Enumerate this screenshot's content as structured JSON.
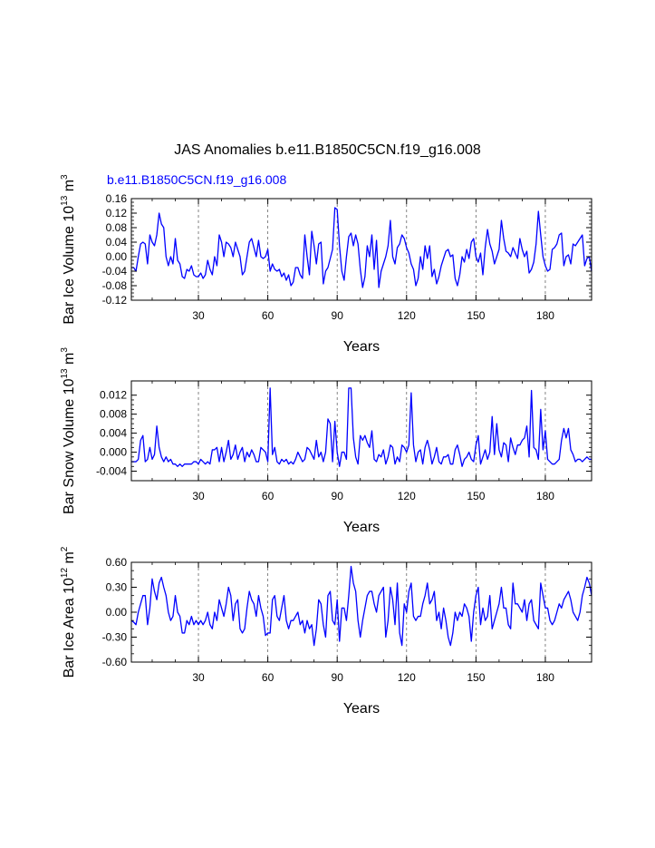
{
  "page_title": "JAS Anomalies b.e11.B1850C5CN.f19_g16.008",
  "case_label": "b.e11.B1850C5CN.f19_g16.008",
  "colors": {
    "series": "#0000ff",
    "axis": "#000000",
    "reference_line": "#666666"
  },
  "chart_data": [
    {
      "type": "line",
      "title": "",
      "ylabel": {
        "main": "Bar Ice Volume 10",
        "exp1": "13",
        "unit": " m",
        "exp2": "3"
      },
      "xlabel": "Years",
      "xlim": [
        1,
        200
      ],
      "ylim": [
        -0.12,
        0.16
      ],
      "xticks": [
        30,
        60,
        90,
        120,
        150,
        180
      ],
      "xtick_labels": [
        "30",
        "60",
        "90",
        "120",
        "150",
        "180"
      ],
      "yticks": [
        -0.12,
        -0.08,
        -0.04,
        0.0,
        0.04,
        0.08,
        0.12,
        0.16
      ],
      "ytick_labels": [
        "-0.12",
        "-0.08",
        "-0.04",
        "0.00",
        "0.04",
        "0.08",
        "0.12",
        "0.16"
      ],
      "minor_per_major_y": 4,
      "minor_step_x": 10,
      "reference_lines_x": [
        30,
        60,
        90,
        120,
        150,
        180
      ],
      "series": [
        {
          "name": "b.e11.B1850C5CN.f19_g16.008",
          "values": [
            -0.03,
            -0.03,
            -0.04,
            0.0,
            0.035,
            0.04,
            0.035,
            -0.02,
            0.06,
            0.04,
            0.03,
            0.06,
            0.12,
            0.09,
            0.08,
            0.0,
            -0.025,
            0.0,
            -0.02,
            0.05,
            -0.01,
            -0.02,
            -0.055,
            -0.06,
            -0.035,
            -0.04,
            -0.025,
            -0.05,
            -0.055,
            -0.055,
            -0.045,
            -0.06,
            -0.05,
            -0.01,
            -0.035,
            -0.05,
            0.0,
            -0.025,
            0.06,
            0.04,
            0.0,
            0.04,
            0.035,
            0.025,
            0.0,
            0.04,
            0.02,
            0.0,
            -0.05,
            -0.04,
            0.0,
            0.04,
            0.05,
            0.025,
            0.0,
            0.045,
            0.0,
            -0.005,
            0.0,
            0.02,
            -0.04,
            -0.02,
            -0.035,
            -0.04,
            -0.035,
            -0.055,
            -0.045,
            -0.065,
            -0.05,
            -0.08,
            -0.07,
            -0.03,
            -0.03,
            -0.05,
            -0.06,
            0.06,
            0.0,
            -0.05,
            0.07,
            0.03,
            -0.02,
            0.035,
            0.04,
            -0.075,
            -0.04,
            -0.03,
            -0.005,
            0.02,
            0.135,
            0.13,
            0.03,
            -0.04,
            -0.065,
            0.0,
            0.055,
            0.065,
            0.03,
            0.06,
            0.035,
            -0.035,
            -0.085,
            -0.055,
            0.03,
            0.0,
            0.06,
            -0.035,
            0.045,
            -0.085,
            -0.04,
            -0.02,
            0.0,
            0.03,
            0.1,
            0.0,
            -0.02,
            0.025,
            0.035,
            0.06,
            0.05,
            0.025,
            0.01,
            -0.02,
            -0.035,
            -0.08,
            -0.06,
            0.0,
            -0.035,
            0.03,
            -0.005,
            0.03,
            -0.055,
            -0.035,
            -0.075,
            -0.055,
            -0.025,
            -0.005,
            0.015,
            0.02,
            0.0,
            0.005,
            -0.06,
            -0.08,
            -0.05,
            0.0,
            -0.015,
            0.02,
            -0.005,
            0.04,
            0.05,
            0.0,
            -0.015,
            0.01,
            -0.05,
            0.025,
            0.075,
            0.035,
            0.015,
            -0.02,
            0.0,
            0.02,
            0.1,
            0.05,
            0.015,
            0.01,
            0.0,
            0.025,
            0.01,
            -0.005,
            0.05,
            0.02,
            0.0,
            0.015,
            -0.045,
            -0.035,
            -0.015,
            0.035,
            0.125,
            0.06,
            0.0,
            -0.025,
            -0.04,
            -0.035,
            0.02,
            0.025,
            0.035,
            0.06,
            0.065,
            -0.025,
            0.0,
            0.005,
            -0.02,
            0.035,
            0.03,
            0.04,
            0.05,
            0.06,
            -0.025,
            -0.005,
            0.0,
            -0.04
          ]
        }
      ]
    },
    {
      "type": "line",
      "title": "",
      "ylabel": {
        "main": "Bar Snow Volume 10",
        "exp1": "13",
        "unit": " m",
        "exp2": "3"
      },
      "xlabel": "Years",
      "xlim": [
        1,
        200
      ],
      "ylim": [
        -0.006,
        0.015
      ],
      "xticks": [
        30,
        60,
        90,
        120,
        150,
        180
      ],
      "xtick_labels": [
        "30",
        "60",
        "90",
        "120",
        "150",
        "180"
      ],
      "yticks": [
        -0.004,
        0.0,
        0.004,
        0.008,
        0.012
      ],
      "ytick_labels": [
        "-0.004",
        "0.000",
        "0.004",
        "0.008",
        "0.012"
      ],
      "minor_per_major_y": 4,
      "minor_step_x": 10,
      "reference_lines_x": [
        30,
        60,
        90,
        120,
        150,
        180
      ],
      "series": [
        {
          "name": "b.e11.B1850C5CN.f19_g16.008",
          "values": [
            -0.002,
            -0.002,
            -0.002,
            -0.0015,
            0.0025,
            0.0035,
            -0.002,
            -0.0015,
            0.001,
            -0.0015,
            -0.0005,
            0.0055,
            0.001,
            -0.001,
            -0.002,
            -0.001,
            -0.002,
            -0.0015,
            -0.0025,
            -0.0025,
            -0.003,
            -0.0025,
            -0.003,
            -0.0025,
            -0.0025,
            -0.0025,
            -0.0025,
            -0.002,
            -0.002,
            -0.0025,
            -0.0015,
            -0.002,
            -0.0025,
            -0.002,
            -0.0025,
            0.0005,
            0.0005,
            0.001,
            -0.002,
            0.001,
            -0.002,
            0.0,
            0.0025,
            -0.0015,
            -0.0005,
            0.0015,
            -0.0015,
            0.0,
            0.001,
            -0.002,
            0.0,
            -0.001,
            0.0005,
            -0.0005,
            -0.002,
            -0.002,
            0.001,
            0.0005,
            0.0,
            -0.002,
            0.0135,
            -0.0005,
            0.001,
            -0.002,
            -0.0025,
            -0.0015,
            -0.002,
            -0.0015,
            -0.0025,
            -0.002,
            -0.0025,
            -0.0015,
            0.0,
            -0.001,
            -0.002,
            -0.0015,
            0.001,
            0.0005,
            -0.0005,
            -0.0015,
            0.0025,
            -0.001,
            0.0,
            -0.002,
            0.0,
            0.007,
            0.006,
            -0.002,
            0.0065,
            0.0,
            -0.003,
            0.0,
            0.0,
            -0.0015,
            0.0135,
            0.0135,
            0.003,
            -0.001,
            -0.0025,
            0.0035,
            0.0025,
            0.0035,
            0.002,
            0.001,
            0.0045,
            -0.0015,
            -0.002,
            -0.0005,
            -0.001,
            0.0005,
            -0.0025,
            -0.001,
            0.0015,
            0.001,
            -0.0025,
            -0.001,
            -0.002,
            0.0015,
            0.001,
            0.0,
            0.0015,
            0.0125,
            0.0015,
            -0.002,
            0.0,
            0.0005,
            -0.0025,
            0.001,
            0.0025,
            0.0005,
            -0.0025,
            -0.001,
            0.001,
            -0.002,
            -0.0025,
            -0.001,
            -0.001,
            -0.0005,
            -0.0025,
            -0.0025,
            0.0005,
            0.0015,
            -0.0005,
            -0.003,
            -0.0015,
            -0.001,
            0.0,
            -0.0015,
            -0.002,
            0.0015,
            0.0035,
            -0.0025,
            -0.001,
            0.0005,
            -0.0015,
            0.0,
            0.0075,
            -0.0005,
            0.006,
            0.0005,
            -0.001,
            0.002,
            0.0015,
            -0.002,
            0.003,
            0.001,
            -0.0005,
            0.0015,
            0.0015,
            0.0025,
            0.003,
            0.0055,
            -0.001,
            0.013,
            0.001,
            0.0005,
            -0.0015,
            0.009,
            0.0005,
            0.0045,
            -0.0015,
            -0.002,
            -0.0025,
            -0.0025,
            -0.002,
            -0.0015,
            0.0025,
            0.005,
            0.003,
            0.005,
            0.0005,
            -0.0005,
            -0.002,
            -0.0015,
            -0.0015,
            -0.002,
            -0.0015,
            -0.001,
            -0.0015,
            -0.0015
          ]
        }
      ]
    },
    {
      "type": "line",
      "title": "",
      "ylabel": {
        "main": "Bar Ice Area 10",
        "exp1": "12",
        "unit": " m",
        "exp2": "2"
      },
      "xlabel": "Years",
      "xlim": [
        1,
        200
      ],
      "ylim": [
        -0.6,
        0.6
      ],
      "xticks": [
        30,
        60,
        90,
        120,
        150,
        180
      ],
      "xtick_labels": [
        "30",
        "60",
        "90",
        "120",
        "150",
        "180"
      ],
      "yticks": [
        -0.6,
        -0.3,
        0.0,
        0.3,
        0.6
      ],
      "ytick_labels": [
        "-0.60",
        "-0.30",
        "0.00",
        "0.30",
        "0.60"
      ],
      "minor_per_major_y": 3,
      "minor_step_x": 10,
      "reference_lines_x": [
        30,
        60,
        90,
        120,
        150,
        180
      ],
      "series": [
        {
          "name": "b.e11.B1850C5CN.f19_g16.008",
          "values": [
            -0.1,
            -0.12,
            -0.15,
            0.0,
            0.1,
            0.2,
            0.2,
            -0.15,
            0.05,
            0.4,
            0.25,
            0.15,
            0.35,
            0.42,
            0.3,
            0.2,
            0.0,
            -0.1,
            -0.05,
            0.2,
            0.0,
            -0.05,
            -0.25,
            -0.25,
            -0.1,
            -0.15,
            -0.05,
            -0.15,
            -0.1,
            -0.15,
            -0.1,
            -0.15,
            -0.1,
            0.0,
            -0.15,
            -0.2,
            0.0,
            -0.1,
            0.15,
            0.05,
            -0.05,
            0.1,
            0.3,
            0.2,
            -0.1,
            0.1,
            0.15,
            -0.2,
            -0.25,
            -0.2,
            0.05,
            0.25,
            0.15,
            0.1,
            -0.05,
            0.2,
            0.05,
            -0.05,
            -0.28,
            -0.25,
            -0.25,
            0.15,
            0.2,
            -0.05,
            -0.1,
            0.05,
            0.2,
            -0.1,
            -0.2,
            -0.1,
            -0.1,
            -0.05,
            0.0,
            -0.15,
            -0.1,
            -0.25,
            -0.1,
            -0.2,
            -0.15,
            -0.4,
            -0.2,
            0.15,
            0.1,
            -0.15,
            -0.3,
            0.2,
            0.25,
            -0.1,
            -0.15,
            0.15,
            -0.35,
            0.05,
            0.05,
            -0.1,
            0.2,
            0.55,
            0.35,
            0.25,
            -0.1,
            -0.3,
            -0.1,
            0.05,
            0.2,
            0.25,
            0.25,
            0.1,
            0.0,
            0.2,
            0.25,
            0.3,
            -0.3,
            -0.1,
            0.3,
            0.15,
            -0.15,
            0.35,
            -0.25,
            -0.4,
            0.1,
            0.0,
            0.25,
            0.35,
            -0.05,
            -0.1,
            -0.05,
            -0.05,
            0.1,
            0.2,
            0.35,
            0.1,
            0.15,
            0.25,
            -0.1,
            0.0,
            -0.2,
            0.05,
            -0.1,
            -0.3,
            -0.4,
            -0.25,
            0.0,
            -0.1,
            0.0,
            -0.05,
            0.1,
            0.05,
            -0.05,
            -0.35,
            0.0,
            0.2,
            0.3,
            -0.15,
            0.05,
            -0.1,
            -0.05,
            0.2,
            -0.2,
            -0.1,
            0.0,
            0.1,
            0.3,
            0.05,
            0.05,
            -0.15,
            -0.2,
            0.35,
            0.1,
            0.1,
            0.05,
            0.0,
            0.15,
            -0.1,
            0.1,
            0.15,
            -0.1,
            -0.15,
            -0.2,
            0.35,
            0.2,
            0.05,
            0.05,
            -0.1,
            -0.15,
            -0.1,
            0.0,
            0.1,
            0.05,
            0.15,
            0.2,
            0.25,
            0.15,
            0.0,
            -0.05,
            -0.1,
            0.0,
            0.2,
            0.3,
            0.42,
            0.35,
            0.2
          ]
        }
      ]
    }
  ]
}
